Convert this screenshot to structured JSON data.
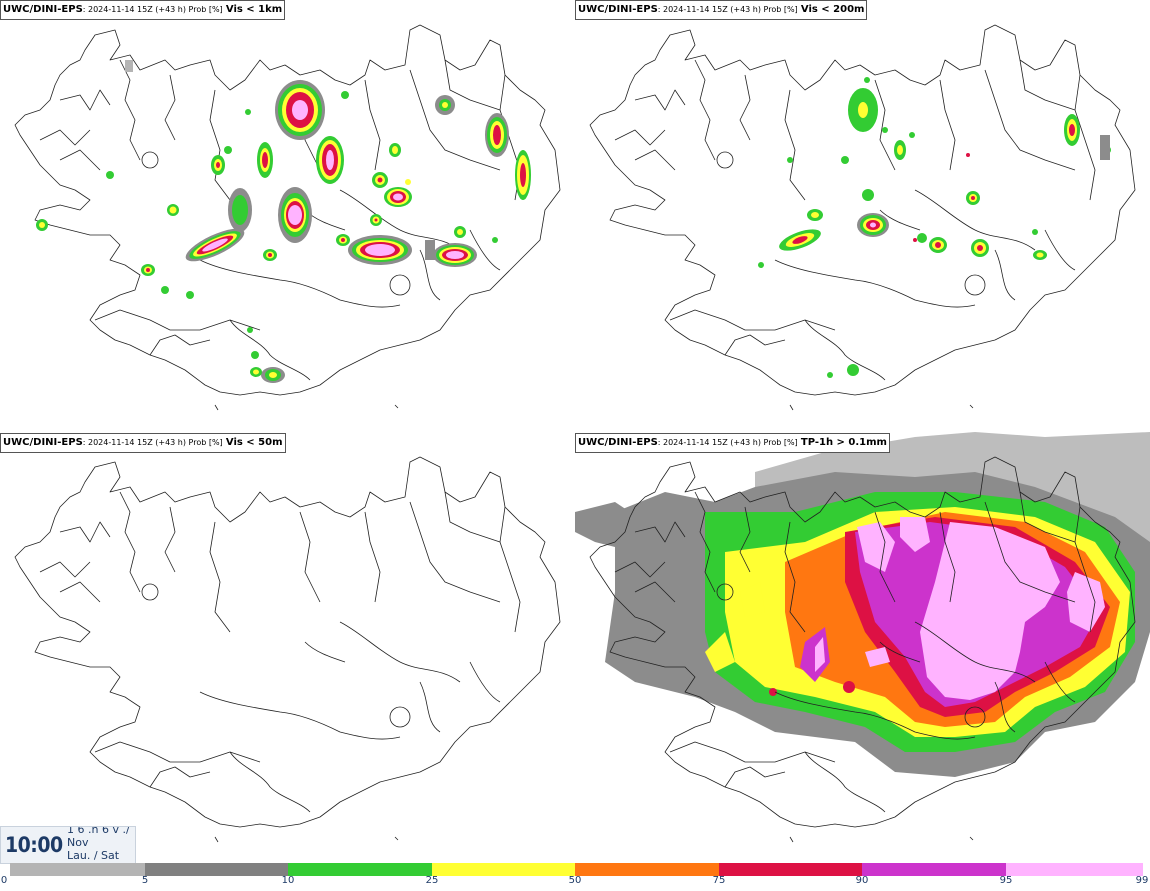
{
  "panels": [
    {
      "model": "UWC/DINI-EPS",
      "meta": ": 2024-11-14 15Z (+43 h) Prob [%]",
      "variable": "Vis < 1km"
    },
    {
      "model": "UWC/DINI-EPS",
      "meta": ": 2024-11-14 15Z (+43 h) Prob [%]",
      "variable": "Vis < 200m"
    },
    {
      "model": "UWC/DINI-EPS",
      "meta": ": 2024-11-14 15Z (+43 h) Prob [%]",
      "variable": "Vis < 50m"
    },
    {
      "model": "UWC/DINI-EPS",
      "meta": ": 2024-11-14 15Z (+43 h) Prob [%]",
      "variable": "TP-1h > 0.1mm"
    }
  ],
  "timebox": {
    "time": "10:00",
    "date_line1": "1 6 .n 6 v ./",
    "date_line2": "Nov",
    "date_line3": "Lau. / Sat"
  },
  "legend": {
    "ticks": [
      "0",
      "5",
      "10",
      "25",
      "50",
      "75",
      "90",
      "95",
      "99"
    ],
    "colors": [
      "#b4b4b4",
      "#808080",
      "#33cc33",
      "#ffff33",
      "#ff7711",
      "#dd1144",
      "#cc33cc",
      "#ffb3ff"
    ]
  },
  "colors": {
    "gray_light": "#bdbdbd",
    "gray_dark": "#8c8c8c",
    "green": "#33cc33",
    "yellow": "#ffff33",
    "orange": "#ff7711",
    "red": "#dd1144",
    "magenta": "#cc33cc",
    "pink": "#ffb3ff"
  }
}
